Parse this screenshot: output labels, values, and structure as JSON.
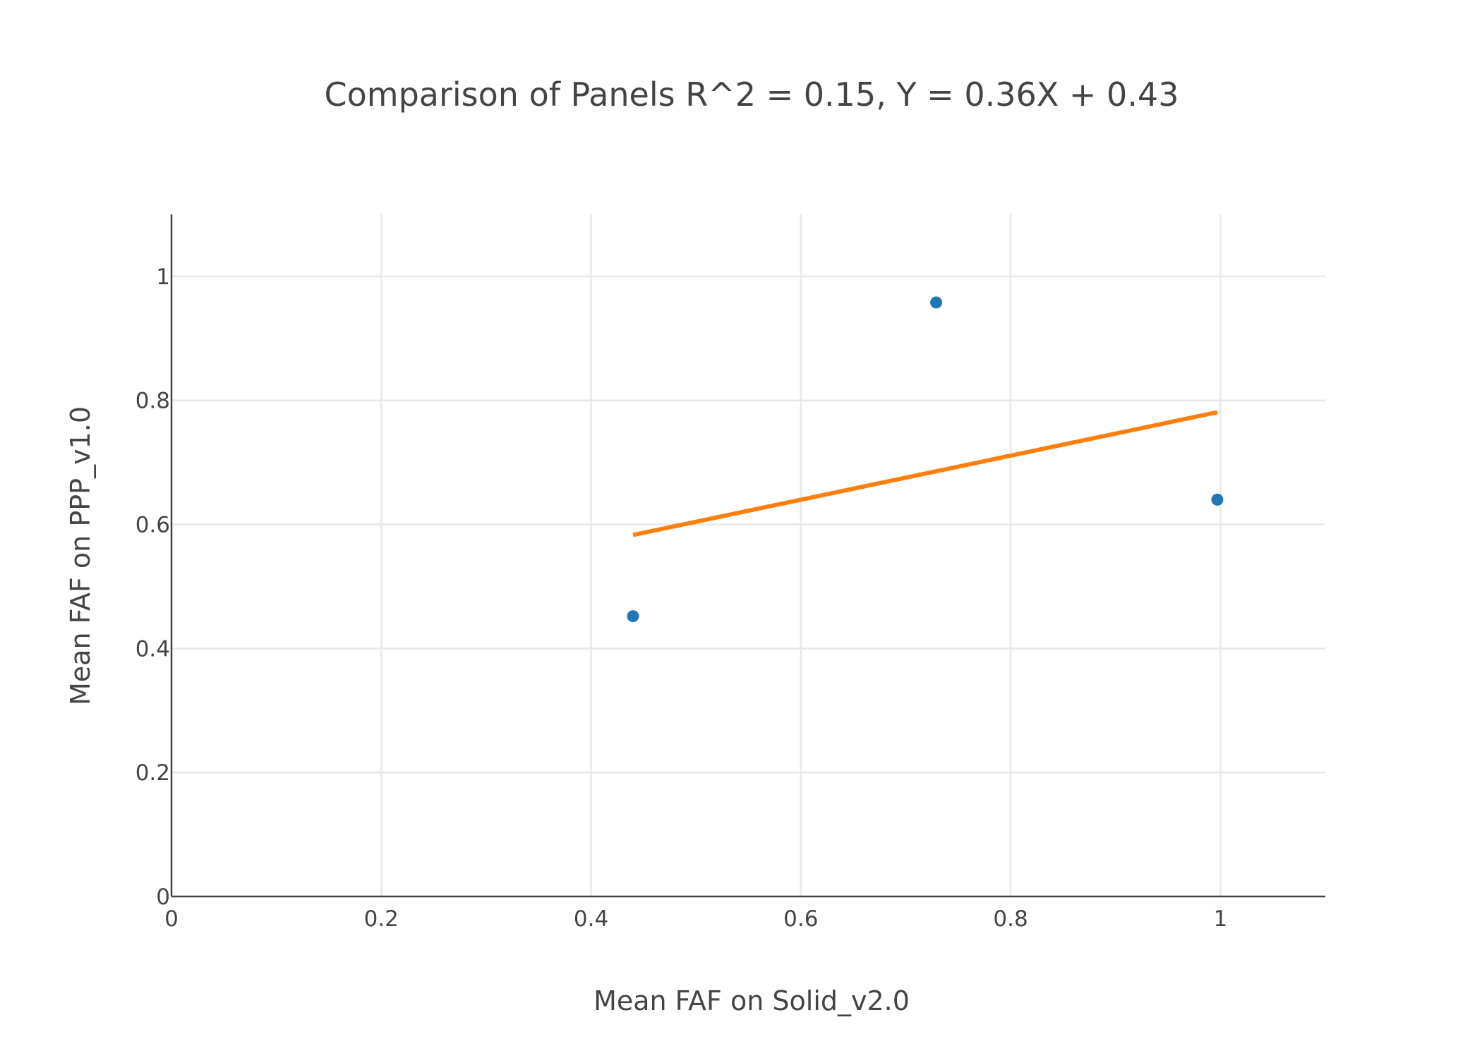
{
  "chart_data": {
    "type": "scatter",
    "title": "Comparison of Panels R^2 = 0.15, Y = 0.36X + 0.43",
    "xlabel": "Mean FAF on Solid_v2.0",
    "ylabel": "Mean FAF on PPP_v1.0",
    "xlim": [
      0,
      1.1
    ],
    "ylim": [
      0,
      1.1
    ],
    "xticks": [
      0,
      0.2,
      0.4,
      0.6,
      0.8,
      1
    ],
    "yticks": [
      0,
      0.2,
      0.4,
      0.6,
      0.8,
      1
    ],
    "grid": true,
    "legend": "none",
    "series": [
      {
        "type": "scatter",
        "color": "#1f77b4",
        "points": [
          {
            "x": 0.44,
            "y": 0.452
          },
          {
            "x": 0.729,
            "y": 0.958
          },
          {
            "x": 0.997,
            "y": 0.64
          }
        ]
      },
      {
        "type": "line",
        "color": "#ff7f0e",
        "points": [
          {
            "x": 0.44,
            "y": 0.583
          },
          {
            "x": 0.997,
            "y": 0.781
          }
        ]
      }
    ]
  }
}
